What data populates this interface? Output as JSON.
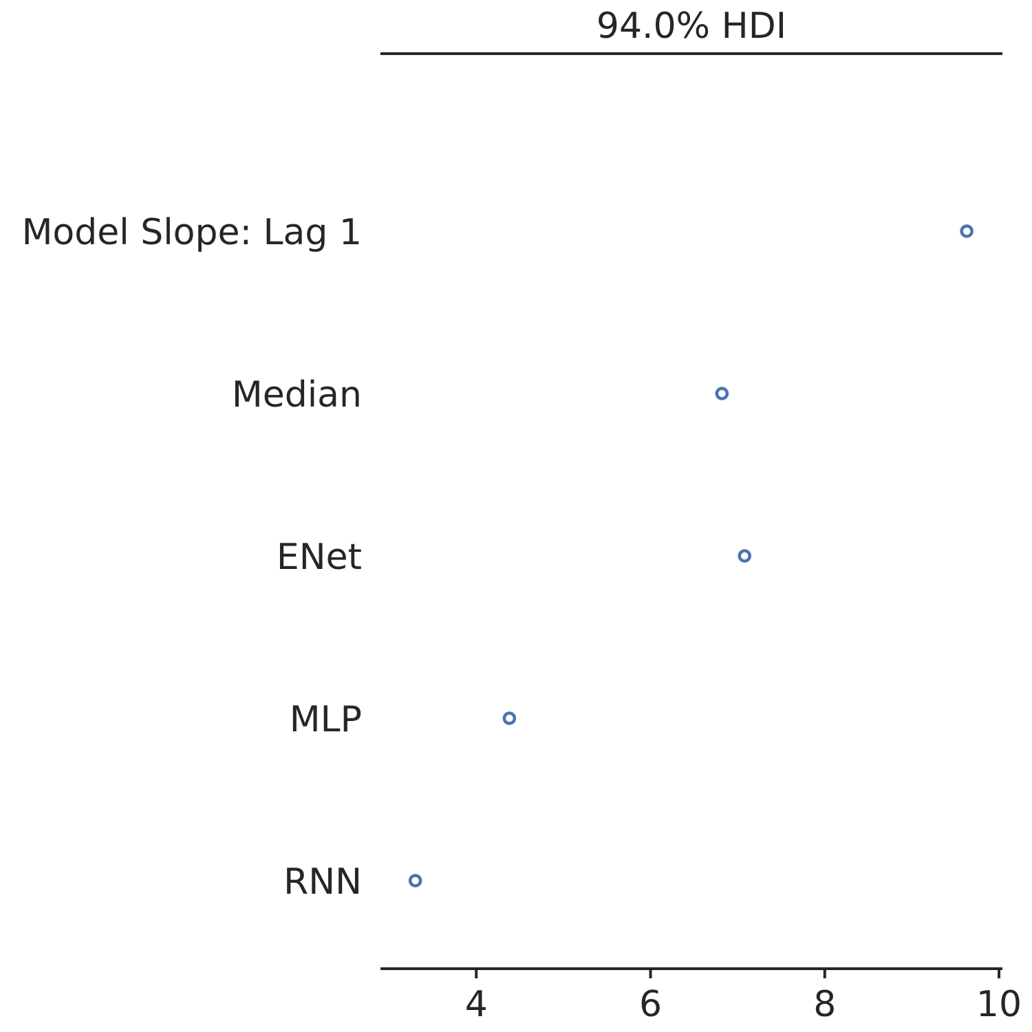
{
  "chart_data": {
    "type": "scatter",
    "title": "94.0% HDI",
    "xlabel": "",
    "ylabel": "",
    "xlim": [
      2.9,
      10.0
    ],
    "xticks": [
      4,
      6,
      8,
      10
    ],
    "xtick_labels": [
      "4",
      "6",
      "8",
      "10"
    ],
    "grid": false,
    "categories": [
      "Model Slope: Lag 1",
      "Median",
      "ENet",
      "MLP",
      "RNN"
    ],
    "values": [
      9.63,
      6.82,
      7.08,
      4.38,
      3.3
    ],
    "colors": {
      "marker": "#4c72b0",
      "text": "#262626",
      "axis": "#262626"
    }
  }
}
